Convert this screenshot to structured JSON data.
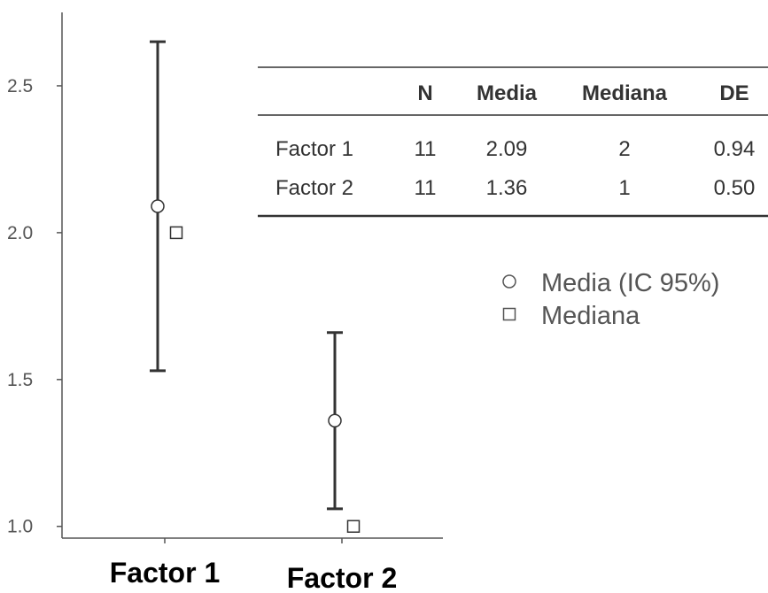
{
  "chart_data": {
    "type": "scatter",
    "categories": [
      "Factor 1",
      "Factor 2"
    ],
    "series": [
      {
        "name": "Media (IC 95%)",
        "values": [
          2.09,
          1.36
        ],
        "ci_lower": [
          1.53,
          1.06
        ],
        "ci_upper": [
          2.65,
          1.66
        ]
      },
      {
        "name": "Mediana",
        "values": [
          2,
          1
        ]
      }
    ],
    "ylim": [
      0.96,
      2.75
    ],
    "yticks": [
      "1.0",
      "1.5",
      "2.0",
      "2.5"
    ],
    "ytick_values": [
      1.0,
      1.5,
      2.0,
      2.5
    ],
    "grid": false,
    "legend_placement": "center-right",
    "table": {
      "columns": [
        "",
        "N",
        "Media",
        "Mediana",
        "DE"
      ],
      "rows": [
        [
          "Factor 1",
          "11",
          "2.09",
          "2",
          "0.94"
        ],
        [
          "Factor 2",
          "11",
          "1.36",
          "1",
          "0.50"
        ]
      ]
    }
  },
  "colors": {
    "axis": "#555555",
    "errorbar": "#333333",
    "marker_stroke": "#333333",
    "marker_fill": "#ffffff"
  }
}
